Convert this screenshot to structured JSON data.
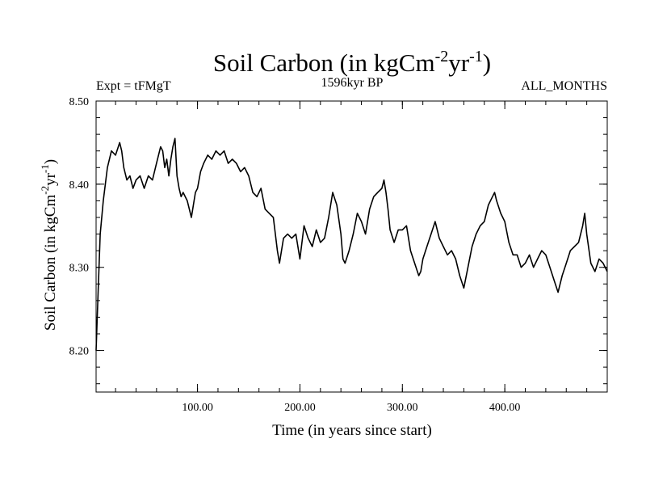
{
  "chart_data": {
    "type": "line",
    "title_main": "Soil Carbon (in kgCm",
    "title_sup1": "-2",
    "title_mid": "yr",
    "title_sup2": "-1",
    "title_end": ")",
    "left_label": "Expt = tFMgT",
    "center_label": "1596kyr BP",
    "right_label": "ALL_MONTHS",
    "xlabel": "Time (in years since start)",
    "ylabel_main": "Soil Carbon (in kgCm",
    "ylabel_sup1": "-2",
    "ylabel_mid": "yr",
    "ylabel_sup2": "-1",
    "ylabel_end": ")",
    "xlim": [
      1,
      500
    ],
    "ylim": [
      8.15,
      8.5
    ],
    "x_ticks": [
      {
        "value": 100,
        "label": "100.00"
      },
      {
        "value": 200,
        "label": "200.00"
      },
      {
        "value": 300,
        "label": "300.00"
      },
      {
        "value": 400,
        "label": "400.00"
      }
    ],
    "y_ticks": [
      {
        "value": 8.2,
        "label": "8.20"
      },
      {
        "value": 8.3,
        "label": "8.30"
      },
      {
        "value": 8.4,
        "label": "8.40"
      },
      {
        "value": 8.5,
        "label": "8.50"
      }
    ],
    "x_minor_step": 20,
    "y_minor_step": 0.02,
    "series": [
      {
        "name": "Soil Carbon",
        "color": "#000000",
        "x": [
          1,
          3,
          5,
          8,
          12,
          16,
          20,
          24,
          26,
          28,
          31,
          34,
          37,
          40,
          44,
          48,
          52,
          56,
          60,
          64,
          66,
          68,
          70,
          72,
          74,
          76,
          78,
          80,
          82,
          84,
          86,
          90,
          94,
          98,
          100,
          103,
          106,
          110,
          114,
          118,
          122,
          126,
          130,
          134,
          138,
          142,
          146,
          150,
          154,
          158,
          162,
          166,
          170,
          174,
          176,
          178,
          180,
          182,
          184,
          188,
          192,
          196,
          200,
          204,
          208,
          212,
          216,
          220,
          224,
          228,
          232,
          236,
          240,
          242,
          244,
          248,
          252,
          256,
          260,
          264,
          268,
          272,
          276,
          280,
          282,
          284,
          286,
          288,
          292,
          296,
          300,
          304,
          308,
          312,
          316,
          318,
          320,
          324,
          328,
          332,
          336,
          340,
          344,
          348,
          352,
          356,
          360,
          364,
          368,
          372,
          376,
          380,
          384,
          388,
          390,
          392,
          396,
          400,
          404,
          408,
          412,
          416,
          420,
          424,
          428,
          432,
          436,
          440,
          444,
          448,
          452,
          456,
          460,
          464,
          468,
          472,
          476,
          478,
          480,
          484,
          488,
          492,
          496,
          500
        ],
        "y": [
          8.2,
          8.27,
          8.34,
          8.38,
          8.42,
          8.44,
          8.435,
          8.45,
          8.44,
          8.42,
          8.405,
          8.41,
          8.395,
          8.405,
          8.41,
          8.395,
          8.41,
          8.405,
          8.425,
          8.445,
          8.44,
          8.42,
          8.43,
          8.41,
          8.43,
          8.445,
          8.455,
          8.41,
          8.395,
          8.385,
          8.39,
          8.38,
          8.36,
          8.39,
          8.395,
          8.415,
          8.425,
          8.435,
          8.43,
          8.44,
          8.435,
          8.44,
          8.425,
          8.43,
          8.425,
          8.415,
          8.42,
          8.41,
          8.39,
          8.385,
          8.395,
          8.37,
          8.365,
          8.36,
          8.34,
          8.32,
          8.305,
          8.32,
          8.335,
          8.34,
          8.335,
          8.34,
          8.31,
          8.35,
          8.335,
          8.325,
          8.345,
          8.33,
          8.335,
          8.36,
          8.39,
          8.375,
          8.34,
          8.31,
          8.305,
          8.32,
          8.34,
          8.365,
          8.355,
          8.34,
          8.37,
          8.385,
          8.39,
          8.395,
          8.405,
          8.39,
          8.37,
          8.345,
          8.33,
          8.345,
          8.345,
          8.35,
          8.32,
          8.305,
          8.29,
          8.295,
          8.31,
          8.325,
          8.34,
          8.355,
          8.335,
          8.325,
          8.315,
          8.32,
          8.31,
          8.29,
          8.275,
          8.3,
          8.325,
          8.34,
          8.35,
          8.355,
          8.375,
          8.385,
          8.39,
          8.38,
          8.365,
          8.355,
          8.33,
          8.315,
          8.315,
          8.3,
          8.305,
          8.315,
          8.3,
          8.31,
          8.32,
          8.315,
          8.3,
          8.285,
          8.27,
          8.29,
          8.305,
          8.32,
          8.325,
          8.33,
          8.35,
          8.365,
          8.34,
          8.305,
          8.295,
          8.31,
          8.305,
          8.295
        ]
      }
    ]
  }
}
